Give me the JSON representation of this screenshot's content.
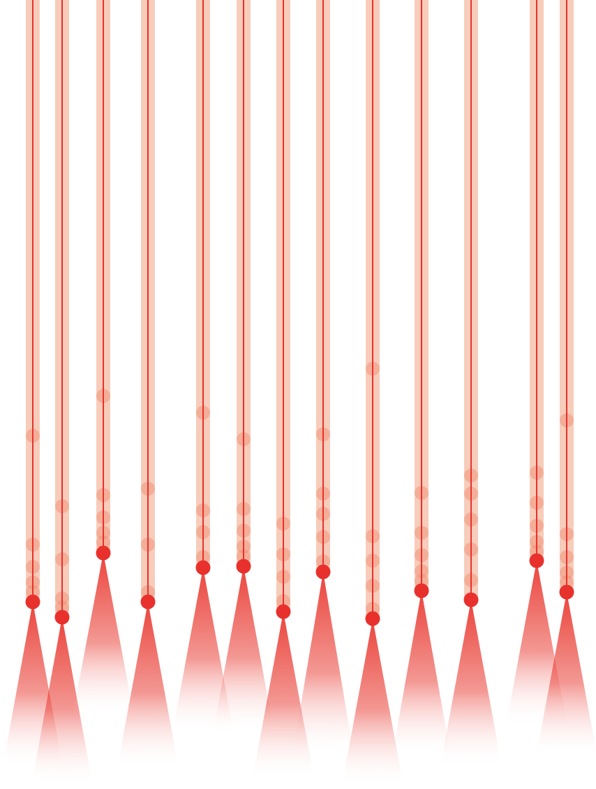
{
  "colors": {
    "background": "#ffffff",
    "track": "#f6c3ae",
    "needle": "#e8312d",
    "head": "#e8312d",
    "ghost_dot": "#f08a6e",
    "cone_top": "#e8342b",
    "cone_bottom": "#ffffff"
  },
  "strands": [
    {
      "name": "strand-1"
    },
    {
      "name": "strand-2"
    },
    {
      "name": "strand-3"
    },
    {
      "name": "strand-4"
    },
    {
      "name": "strand-5"
    },
    {
      "name": "strand-6"
    },
    {
      "name": "strand-7"
    },
    {
      "name": "strand-8"
    },
    {
      "name": "strand-9"
    },
    {
      "name": "strand-10"
    },
    {
      "name": "strand-11"
    },
    {
      "name": "strand-12"
    },
    {
      "name": "strand-13"
    }
  ]
}
